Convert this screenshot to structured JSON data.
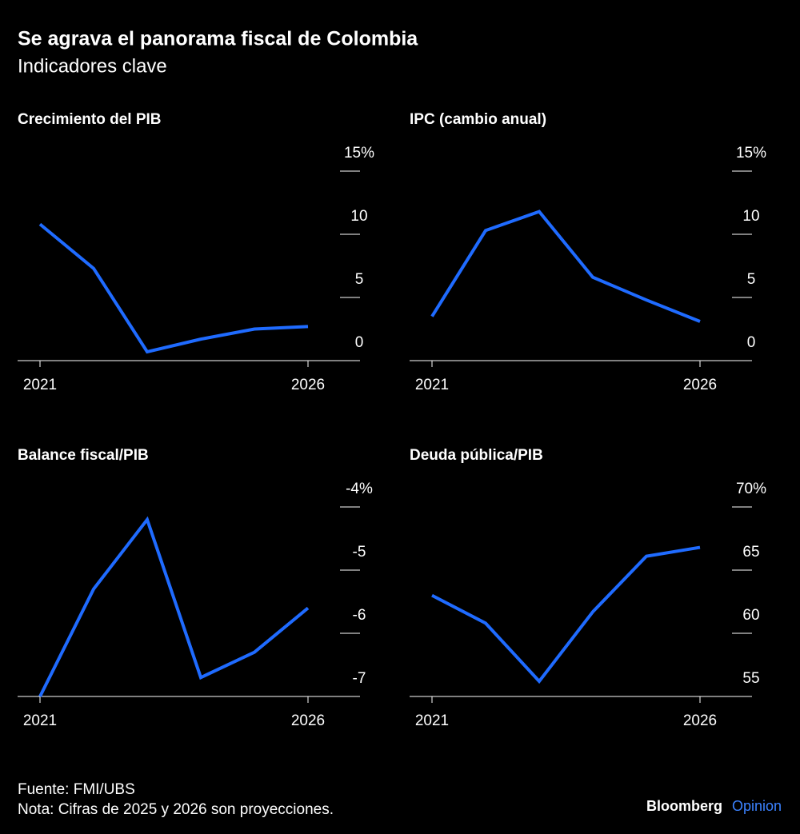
{
  "header": {
    "title": "Se agrava el panorama fiscal de Colombia",
    "subtitle": "Indicadores clave"
  },
  "chart_data": [
    {
      "type": "line",
      "title": "Crecimiento del PIB",
      "x": [
        2021,
        2022,
        2023,
        2024,
        2025,
        2026
      ],
      "xlim": [
        2021,
        2026
      ],
      "xticks": [
        2021,
        2026
      ],
      "values": [
        10.8,
        7.3,
        0.7,
        1.7,
        2.5,
        2.7
      ],
      "color": "#1f6bff",
      "ylim": [
        0,
        15
      ],
      "yticks": [
        0,
        5,
        10,
        {
          "value": 15,
          "label": "15%"
        }
      ]
    },
    {
      "type": "line",
      "title": "IPC (cambio anual)",
      "x": [
        2021,
        2022,
        2023,
        2024,
        2025,
        2026
      ],
      "xlim": [
        2021,
        2026
      ],
      "xticks": [
        2021,
        2026
      ],
      "values": [
        3.5,
        10.3,
        11.8,
        6.6,
        4.8,
        3.1
      ],
      "color": "#1f6bff",
      "ylim": [
        0,
        15
      ],
      "yticks": [
        0,
        5,
        10,
        {
          "value": 15,
          "label": "15%"
        }
      ]
    },
    {
      "type": "line",
      "title": "Balance fiscal/PIB",
      "x": [
        2021,
        2022,
        2023,
        2024,
        2025,
        2026
      ],
      "xlim": [
        2021,
        2026
      ],
      "xticks": [
        2021,
        2026
      ],
      "values": [
        -7.0,
        -5.3,
        -4.2,
        -6.7,
        -6.3,
        -5.6
      ],
      "color": "#1f6bff",
      "ylim": [
        -7,
        -4
      ],
      "yticks": [
        -7,
        -6,
        -5,
        {
          "value": -4,
          "label": "-4%"
        }
      ]
    },
    {
      "type": "line",
      "title": "Deuda pública/PIB",
      "x": [
        2021,
        2022,
        2023,
        2024,
        2025,
        2026
      ],
      "xlim": [
        2021,
        2026
      ],
      "xticks": [
        2021,
        2026
      ],
      "values": [
        63.0,
        60.8,
        56.2,
        61.7,
        66.1,
        66.8
      ],
      "color": "#1f6bff",
      "ylim": [
        55,
        70
      ],
      "yticks": [
        55,
        60,
        65,
        {
          "value": 70,
          "label": "70%"
        }
      ]
    }
  ],
  "footer": {
    "source": "Fuente: FMI/UBS",
    "note": "Nota: Cifras de 2025 y 2026 son proyecciones.",
    "brand": "Bloomberg",
    "brand_suffix": "Opinion"
  }
}
